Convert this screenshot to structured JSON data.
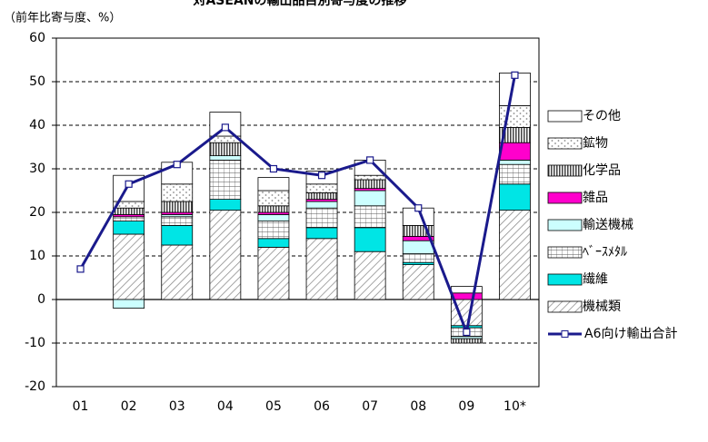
{
  "chart_data": {
    "type": "stacked_bar_line",
    "title": "対ASEANの輸出品目別寄与度の推移",
    "y_axis_label": "（前年比寄与度、%）",
    "categories": [
      "01",
      "02",
      "03",
      "04",
      "05",
      "06",
      "07",
      "08",
      "09",
      "10*"
    ],
    "ylim": [
      -20,
      60
    ],
    "yticks": [
      -20,
      -10,
      0,
      10,
      20,
      30,
      40,
      50,
      60
    ],
    "grid": true,
    "legend": "right",
    "series": [
      {
        "name": "機械類",
        "color": "#888888",
        "pattern": "hatch",
        "values": [
          null,
          15,
          12.5,
          20.5,
          12,
          14,
          11,
          8,
          -6,
          20.5
        ]
      },
      {
        "name": "繊維",
        "color": "#00e5e5",
        "values": [
          null,
          3,
          4.5,
          2.5,
          2,
          2.5,
          5.5,
          0.5,
          -0.5,
          6
        ]
      },
      {
        "name": "ﾍﾞｰｽﾒﾀﾙ",
        "color": "#555555",
        "pattern": "grid",
        "values": [
          null,
          1,
          2,
          9,
          4,
          4.5,
          5,
          2,
          -2,
          4.5
        ]
      },
      {
        "name": "輸送機械",
        "color": "#ccffff",
        "values": [
          null,
          -2,
          0.5,
          1,
          1.5,
          1.5,
          3.5,
          3,
          -0.5,
          1
        ]
      },
      {
        "name": "雑品",
        "color": "#ff00cc",
        "values": [
          null,
          0.5,
          0.5,
          0,
          0.5,
          0.5,
          0.5,
          1,
          1.5,
          4
        ]
      },
      {
        "name": "化学品",
        "color": "#333333",
        "pattern": "vstripe",
        "values": [
          null,
          1.5,
          2.5,
          3,
          1.5,
          1.5,
          2,
          2.5,
          -1,
          3.5
        ]
      },
      {
        "name": "鉱物",
        "color": "#888888",
        "pattern": "dots",
        "values": [
          null,
          1.5,
          4,
          1.5,
          3.5,
          2,
          1,
          0,
          0,
          5
        ]
      },
      {
        "name": "その他",
        "color": "#ffffff",
        "values": [
          null,
          6,
          5,
          5.5,
          3,
          3,
          3.5,
          4,
          1.5,
          7.5
        ]
      },
      {
        "name": "A6向け輸出合計",
        "type": "line",
        "color": "#1a1a8c",
        "values": [
          7,
          26.5,
          31,
          39.5,
          30,
          28.5,
          32,
          21,
          -7.5,
          51.5
        ]
      }
    ]
  }
}
